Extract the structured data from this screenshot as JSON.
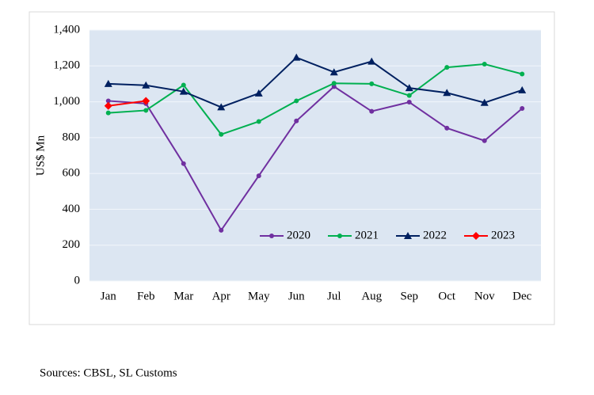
{
  "chart_data": {
    "type": "line",
    "y_label": "US$ Mn",
    "categories": [
      "Jan",
      "Feb",
      "Mar",
      "Apr",
      "May",
      "Jun",
      "Jul",
      "Aug",
      "Sep",
      "Oct",
      "Nov",
      "Dec"
    ],
    "series": [
      {
        "name": "2020",
        "color": "#7030a0",
        "marker": "circle",
        "values": [
          1005,
          990,
          655,
          283,
          587,
          893,
          1085,
          947,
          998,
          853,
          783,
          963
        ]
      },
      {
        "name": "2021",
        "color": "#00b050",
        "marker": "circle",
        "values": [
          938,
          952,
          1093,
          818,
          890,
          1005,
          1103,
          1100,
          1035,
          1192,
          1210,
          1155
        ]
      },
      {
        "name": "2022",
        "color": "#002060",
        "marker": "triangle",
        "values": [
          1100,
          1092,
          1057,
          970,
          1047,
          1247,
          1165,
          1225,
          1077,
          1050,
          995,
          1065
        ]
      },
      {
        "name": "2023",
        "color": "#ff0000",
        "marker": "diamond",
        "values": [
          977,
          1005,
          null,
          null,
          null,
          null,
          null,
          null,
          null,
          null,
          null,
          null
        ]
      }
    ],
    "ylim": [
      0,
      1400
    ],
    "yticks": [
      0,
      200,
      400,
      600,
      800,
      {
        "value": 1000,
        "label": "1,000"
      },
      {
        "value": 1200,
        "label": "1,200"
      },
      {
        "value": 1400,
        "label": "1,400"
      }
    ],
    "grid": true,
    "legend": "bottom-right",
    "plot_background": "#dce6f2"
  },
  "source": "Sources: CBSL, SL Customs"
}
